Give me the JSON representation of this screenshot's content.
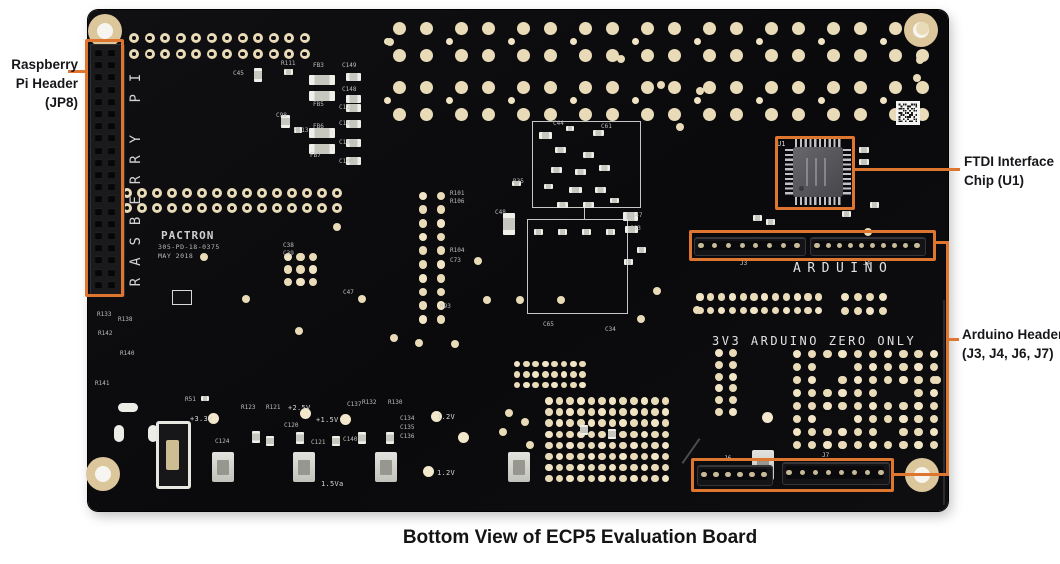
{
  "figure": {
    "caption": "Bottom View of ECP5 Evaluation Board"
  },
  "annotations": {
    "accent_color": "#DF7630",
    "raspberry_pi_header": {
      "line1": "Raspberry",
      "line2": "Pi Header",
      "line3": "(JP8)"
    },
    "ftdi_chip": {
      "line1": "FTDI Interface",
      "line2": "Chip (U1)"
    },
    "arduino_header": {
      "line1": "Arduino Header",
      "line2": "(J3, J4, J6, J7)"
    }
  },
  "board": {
    "color": "#0D0D0F",
    "silkscreen": {
      "raspberry_pi_vertical": "RASBERRY PI",
      "manufacturer": "PACTRON",
      "part_number": "305-PD-18-0375",
      "date_code": "MAY 2018",
      "arduino_label": "ARDUINO",
      "arduino_zero_note": "3V3 ARDUINO ZERO ONLY",
      "ftdi_ref": "U1",
      "header_refs": [
        "J3",
        "J4",
        "J6",
        "J7"
      ],
      "voltage_labels": [
        "+3.3V",
        "+2.5V",
        "+1.5V",
        "1.2V",
        "1.2V",
        "1.5Va"
      ],
      "component_refs": [
        "C45",
        "R111",
        "FB3",
        "C149",
        "C148",
        "FB5",
        "C98",
        "R113",
        "FB6",
        "C111",
        "C101",
        "C108",
        "FB7",
        "C100",
        "C38",
        "C39",
        "C47",
        "R101",
        "R106",
        "R104",
        "C73",
        "R93",
        "R35",
        "C48",
        "C147",
        "C63",
        "C44",
        "C61",
        "C65",
        "C34",
        "R123",
        "R121",
        "C120",
        "C121",
        "C137",
        "R132",
        "R130",
        "C134",
        "C135",
        "C136",
        "C140",
        "C124",
        "R133",
        "R138",
        "R142",
        "R140",
        "R141",
        "R51"
      ]
    }
  }
}
